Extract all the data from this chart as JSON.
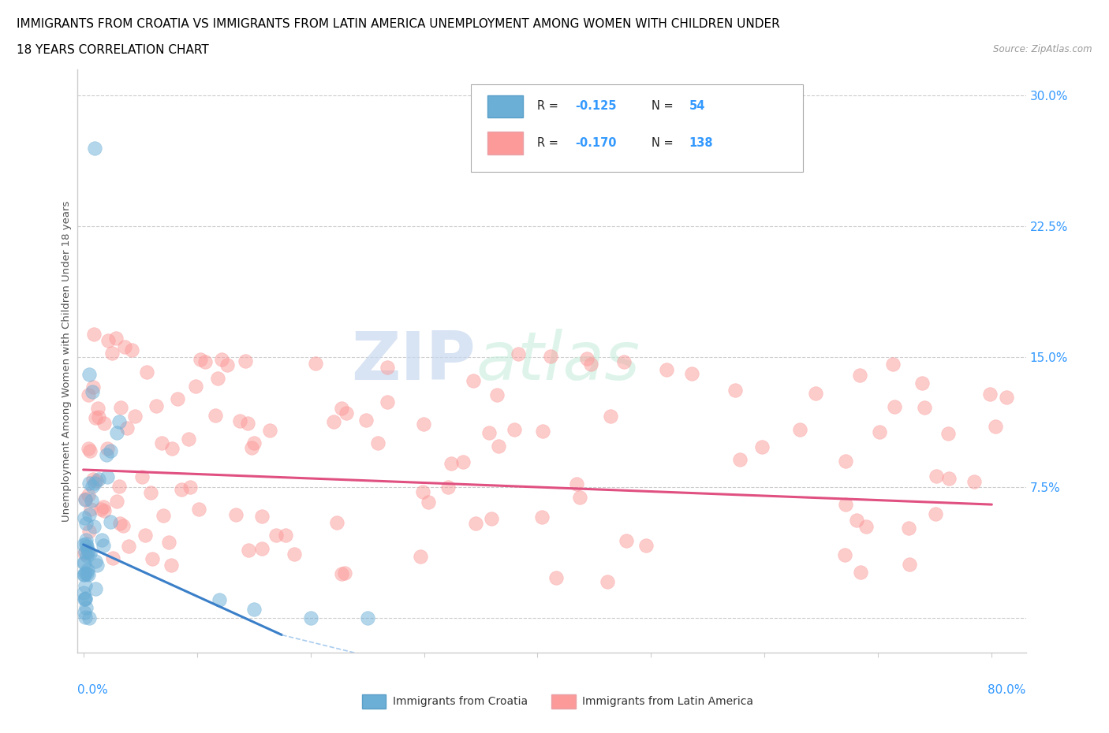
{
  "title_line1": "IMMIGRANTS FROM CROATIA VS IMMIGRANTS FROM LATIN AMERICA UNEMPLOYMENT AMONG WOMEN WITH CHILDREN UNDER",
  "title_line2": "18 YEARS CORRELATION CHART",
  "source": "Source: ZipAtlas.com",
  "ylabel": "Unemployment Among Women with Children Under 18 years",
  "croatia_color": "#6baed6",
  "latin_color": "#fb9a99",
  "croatia_R": -0.125,
  "croatia_N": 54,
  "latin_R": -0.17,
  "latin_N": 138,
  "watermark_ZIP": "ZIP",
  "watermark_atlas": "atlas",
  "legend_label_croatia": "Immigrants from Croatia",
  "legend_label_latin": "Immigrants from Latin America",
  "accent_color": "#3399ff",
  "grid_color": "#cccccc",
  "spine_color": "#cccccc",
  "title_color": "#000000",
  "source_color": "#999999",
  "ylabel_color": "#555555",
  "ytick_labels": [
    "",
    "7.5%",
    "15.0%",
    "22.5%",
    "30.0%"
  ],
  "ytick_values": [
    0.0,
    0.075,
    0.15,
    0.225,
    0.3
  ],
  "xlim": [
    -0.005,
    0.83
  ],
  "ylim": [
    -0.02,
    0.315
  ]
}
